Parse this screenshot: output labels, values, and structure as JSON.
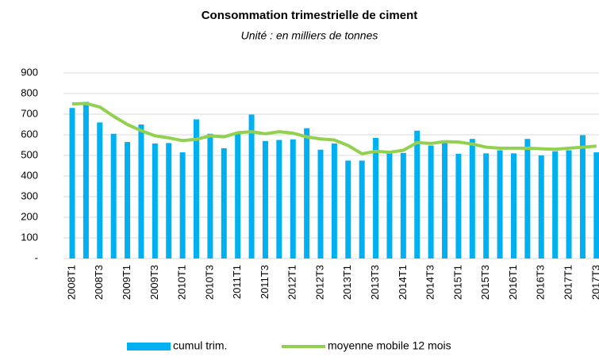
{
  "chart_data": {
    "type": "bar-line",
    "title": "Consommation trimestrielle de ciment",
    "subtitle": "Unité : en milliers de tonnes",
    "categories": [
      "2008T1",
      null,
      "2008T3",
      null,
      "2009T1",
      null,
      "2009T3",
      null,
      "2010T1",
      null,
      "2010T3",
      null,
      "2011T1",
      null,
      "2011T3",
      null,
      "2012T1",
      null,
      "2012T3",
      null,
      "2013T1",
      null,
      "2013T3",
      null,
      "2014T1",
      null,
      "2014T3",
      null,
      "2015T1",
      null,
      "2015T3",
      null,
      "2016T1",
      null,
      "2016T3",
      null,
      "2017T1",
      null,
      "2017T3"
    ],
    "series": [
      {
        "name": "cumul trim.",
        "type": "bar",
        "color": "#00b0f0",
        "values": [
          730,
          760,
          660,
          605,
          565,
          650,
          558,
          560,
          515,
          675,
          605,
          535,
          610,
          698,
          570,
          575,
          578,
          632,
          528,
          558,
          475,
          475,
          585,
          510,
          512,
          620,
          548,
          560,
          508,
          580,
          510,
          525,
          510,
          580,
          500,
          520,
          525,
          598,
          515
        ]
      },
      {
        "name": "moyenne mobile 12 mois",
        "type": "line",
        "color": "#92d050",
        "values": [
          750,
          752,
          735,
          690,
          650,
          620,
          595,
          585,
          572,
          578,
          595,
          590,
          610,
          615,
          605,
          615,
          608,
          590,
          580,
          575,
          548,
          508,
          520,
          515,
          525,
          562,
          558,
          567,
          565,
          555,
          540,
          535,
          535,
          535,
          532,
          530,
          535,
          540,
          545
        ]
      }
    ],
    "ylim": [
      0,
      900
    ],
    "yticks": [
      {
        "value": 0,
        "label": "-"
      },
      100,
      200,
      300,
      400,
      500,
      600,
      700,
      800,
      900
    ],
    "grid": true,
    "legend": "bottom"
  }
}
